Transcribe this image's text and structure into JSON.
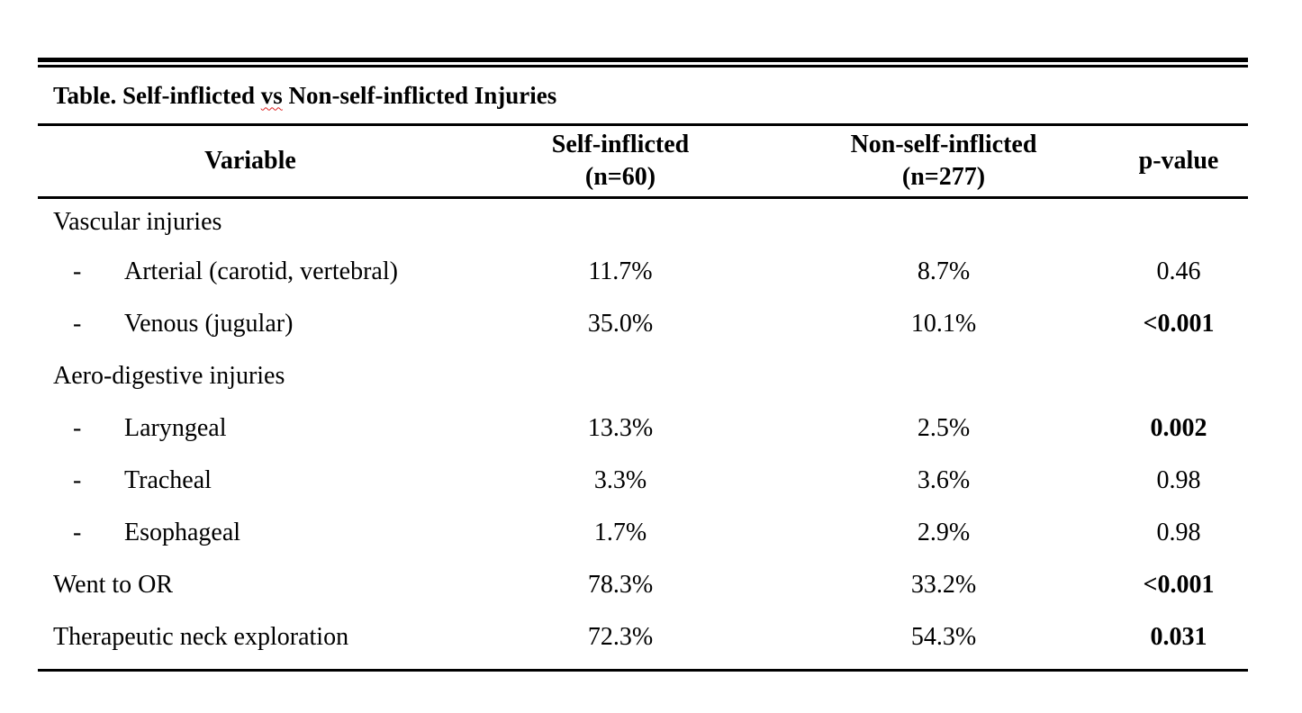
{
  "table": {
    "title_prefix": "Table. Self-inflicted ",
    "title_vs": "vs",
    "title_suffix": " Non-self-inflicted Injuries",
    "headers": {
      "variable": "Variable",
      "self_line1": "Self-inflicted",
      "self_line2": "(n=60)",
      "non_line1": "Non-self-inflicted",
      "non_line2": "(n=277)",
      "p": "p-value"
    },
    "rows": [
      {
        "label": "Vascular injuries",
        "sub": false,
        "self": "",
        "non": "",
        "p": "",
        "p_bold": false
      },
      {
        "label": "Arterial (carotid, vertebral)",
        "sub": true,
        "dash": "-",
        "self": "11.7%",
        "non": "8.7%",
        "p": "0.46",
        "p_bold": false
      },
      {
        "label": "Venous (jugular)",
        "sub": true,
        "dash": "-",
        "self": "35.0%",
        "non": "10.1%",
        "p": "<0.001",
        "p_bold": true
      },
      {
        "label": "Aero-digestive injuries",
        "sub": false,
        "self": "",
        "non": "",
        "p": "",
        "p_bold": false
      },
      {
        "label": "Laryngeal",
        "sub": true,
        "dash": "-",
        "self": "13.3%",
        "non": "2.5%",
        "p": "0.002",
        "p_bold": true
      },
      {
        "label": "Tracheal",
        "sub": true,
        "dash": "-",
        "self": "3.3%",
        "non": "3.6%",
        "p": "0.98",
        "p_bold": false
      },
      {
        "label": "Esophageal",
        "sub": true,
        "dash": "-",
        "self": "1.7%",
        "non": "2.9%",
        "p": "0.98",
        "p_bold": false
      },
      {
        "label": "Went to OR",
        "sub": false,
        "self": "78.3%",
        "non": "33.2%",
        "p": "<0.001",
        "p_bold": true
      },
      {
        "label": "Therapeutic neck exploration",
        "sub": false,
        "self": "72.3%",
        "non": "54.3%",
        "p": "0.031",
        "p_bold": true
      }
    ]
  }
}
